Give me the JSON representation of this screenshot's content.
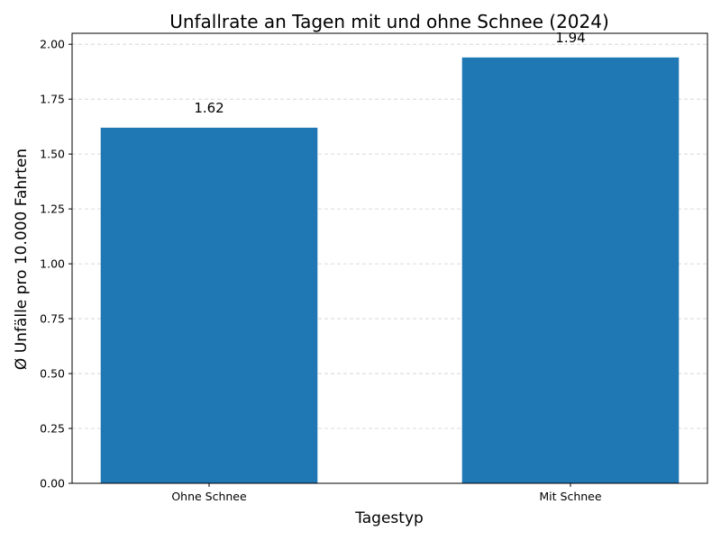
{
  "chart_data": {
    "type": "bar",
    "title": "Unfallrate an Tagen mit und ohne Schnee (2024)",
    "xlabel": "Tagestyp",
    "ylabel": "Ø Unfälle pro 10.000 Fahrten",
    "categories": [
      "Ohne Schnee",
      "Mit Schnee"
    ],
    "values": [
      1.62,
      1.94
    ],
    "value_labels": [
      "1.62",
      "1.94"
    ],
    "ylim": [
      0,
      2.05
    ],
    "yticks": [
      "0.00",
      "0.25",
      "0.50",
      "0.75",
      "1.00",
      "1.25",
      "1.50",
      "1.75",
      "2.00"
    ],
    "grid": true,
    "bar_color": "#1f77b4"
  }
}
